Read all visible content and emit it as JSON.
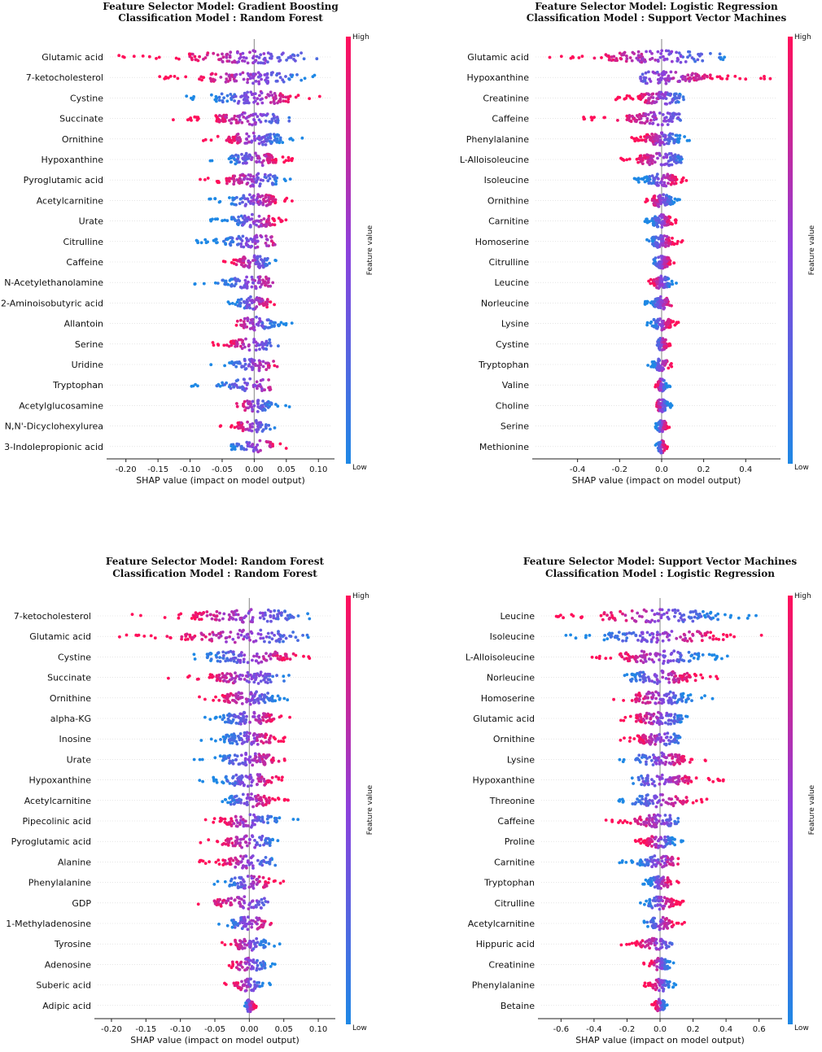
{
  "chart_data": [
    {
      "type": "scatter",
      "subtype": "shap-beeswarm",
      "title": "Feature Selector  Model: Gradient Boosting",
      "subtitle": "Classification Model : Random Forest",
      "xlabel": "SHAP value (impact on model output)",
      "colorbar": {
        "label": "Feature value",
        "high": "High",
        "low": "Low",
        "high_color": "#ff0f5a",
        "low_color": "#1e88e5"
      },
      "xlim": [
        -0.225,
        0.12
      ],
      "xticks": [
        -0.2,
        -0.15,
        -0.1,
        -0.05,
        0.0,
        0.05,
        0.1
      ],
      "xtick_labels": [
        "-0.20",
        "-0.15",
        "-0.10",
        "-0.05",
        "0.00",
        "0.05",
        "0.10"
      ],
      "features": [
        "Glutamic acid",
        "7-ketocholesterol",
        "Cystine",
        "Succinate",
        "Ornithine",
        "Hypoxanthine",
        "Pyroglutamic acid",
        "Acetylcarnitine",
        "Urate",
        "Citrulline",
        "Caffeine",
        "N-Acetylethanolamine",
        "2-Aminoisobutyric acid",
        "Allantoin",
        "Serine",
        "Uridine",
        "Tryptophan",
        "Acetylglucosamine",
        "N,N'-Dicyclohexylurea",
        "3-Indolepropionic acid"
      ],
      "ranges": [
        [
          -0.22,
          0.1
        ],
        [
          -0.15,
          0.1
        ],
        [
          -0.11,
          0.105
        ],
        [
          -0.13,
          0.055
        ],
        [
          -0.08,
          0.075
        ],
        [
          -0.07,
          0.06
        ],
        [
          -0.085,
          0.06
        ],
        [
          -0.07,
          0.06
        ],
        [
          -0.07,
          0.055
        ],
        [
          -0.1,
          0.045
        ],
        [
          -0.055,
          0.035
        ],
        [
          -0.1,
          0.03
        ],
        [
          -0.05,
          0.035
        ],
        [
          -0.03,
          0.065
        ],
        [
          -0.075,
          0.04
        ],
        [
          -0.07,
          0.04
        ],
        [
          -0.11,
          0.03
        ],
        [
          -0.03,
          0.055
        ],
        [
          -0.055,
          0.035
        ],
        [
          -0.07,
          0.05
        ]
      ],
      "high_side": [
        -1,
        -1,
        1,
        -1,
        -1,
        1,
        -1,
        1,
        1,
        1,
        -1,
        1,
        1,
        -1,
        -1,
        1,
        1,
        -1,
        -1,
        1
      ]
    },
    {
      "type": "scatter",
      "subtype": "shap-beeswarm",
      "title": "Feature Selector  Model: Logistic Regression",
      "subtitle": "Classification Model : Support Vector Machines",
      "xlabel": "SHAP value (impact on model output)",
      "colorbar": {
        "label": "Feature value",
        "high": "High",
        "low": "Low",
        "high_color": "#ff0f5a",
        "low_color": "#1e88e5"
      },
      "xlim": [
        -0.6,
        0.55
      ],
      "xticks": [
        -0.4,
        -0.2,
        0.0,
        0.2,
        0.4
      ],
      "xtick_labels": [
        "-0.4",
        "-0.2",
        "0.0",
        "0.2",
        "0.4"
      ],
      "features": [
        "Glutamic acid",
        "Hypoxanthine",
        "Creatinine",
        "Caffeine",
        "Phenylalanine",
        "L-Alloisoleucine",
        "Isoleucine",
        "Ornithine",
        "Carnitine",
        "Homoserine",
        "Citrulline",
        "Leucine",
        "Norleucine",
        "Lysine",
        "Cystine",
        "Tryptophan",
        "Valine",
        "Choline",
        "Serine",
        "Methionine"
      ],
      "ranges": [
        [
          -0.55,
          0.3
        ],
        [
          -0.1,
          0.52
        ],
        [
          -0.22,
          0.15
        ],
        [
          -0.38,
          0.1
        ],
        [
          -0.15,
          0.15
        ],
        [
          -0.22,
          0.16
        ],
        [
          -0.13,
          0.12
        ],
        [
          -0.08,
          0.09
        ],
        [
          -0.08,
          0.08
        ],
        [
          -0.08,
          0.1
        ],
        [
          -0.06,
          0.08
        ],
        [
          -0.08,
          0.07
        ],
        [
          -0.08,
          0.05
        ],
        [
          -0.07,
          0.08
        ],
        [
          -0.03,
          0.05
        ],
        [
          -0.07,
          0.05
        ],
        [
          -0.03,
          0.04
        ],
        [
          -0.04,
          0.05
        ],
        [
          -0.03,
          0.04
        ],
        [
          -0.03,
          0.03
        ]
      ],
      "high_side": [
        -1,
        1,
        -1,
        -1,
        -1,
        -1,
        1,
        -1,
        1,
        1,
        1,
        -1,
        1,
        1,
        1,
        1,
        -1,
        -1,
        1,
        1
      ]
    },
    {
      "type": "scatter",
      "subtype": "shap-beeswarm",
      "title": "Feature Selector  Model: Random Forest",
      "subtitle": "Classification Model : Random Forest",
      "xlabel": "SHAP value (impact on model output)",
      "colorbar": {
        "label": "Feature value",
        "high": "High",
        "low": "Low",
        "high_color": "#ff0f5a",
        "low_color": "#1e88e5"
      },
      "xlim": [
        -0.22,
        0.12
      ],
      "xticks": [
        -0.2,
        -0.15,
        -0.1,
        -0.05,
        0.0,
        0.05,
        0.1
      ],
      "xtick_labels": [
        "-0.20",
        "-0.15",
        "-0.10",
        "-0.05",
        "0.00",
        "0.05",
        "0.10"
      ],
      "features": [
        "7-ketocholesterol",
        "Glutamic acid",
        "Cystine",
        "Succinate",
        "Ornithine",
        "alpha-KG",
        "Inosine",
        "Urate",
        "Hypoxanthine",
        "Acetylcarnitine",
        "Pipecolinic acid",
        "Pyroglutamic acid",
        "Alanine",
        "Phenylalanine",
        "GDP",
        "1-Methyladenosine",
        "Tyrosine",
        "Adenosine",
        "Suberic acid",
        "Adipic acid"
      ],
      "ranges": [
        [
          -0.17,
          0.1
        ],
        [
          -0.19,
          0.1
        ],
        [
          -0.115,
          0.1
        ],
        [
          -0.12,
          0.06
        ],
        [
          -0.075,
          0.06
        ],
        [
          -0.075,
          0.06
        ],
        [
          -0.07,
          0.055
        ],
        [
          -0.08,
          0.065
        ],
        [
          -0.075,
          0.06
        ],
        [
          -0.05,
          0.06
        ],
        [
          -0.065,
          0.075
        ],
        [
          -0.075,
          0.05
        ],
        [
          -0.075,
          0.05
        ],
        [
          -0.055,
          0.05
        ],
        [
          -0.11,
          0.035
        ],
        [
          -0.06,
          0.035
        ],
        [
          -0.04,
          0.045
        ],
        [
          -0.05,
          0.04
        ],
        [
          -0.04,
          0.035
        ],
        [
          -0.01,
          0.01
        ]
      ],
      "high_side": [
        -1,
        -1,
        1,
        -1,
        -1,
        1,
        1,
        1,
        1,
        1,
        -1,
        -1,
        -1,
        1,
        -1,
        1,
        -1,
        -1,
        -1,
        1
      ]
    },
    {
      "type": "scatter",
      "subtype": "shap-beeswarm",
      "title": "Feature Selector  Model: Support Vector Machines",
      "subtitle": "Classification Model : Logistic Regression",
      "xlabel": "SHAP value (impact on model output)",
      "colorbar": {
        "label": "Feature value",
        "high": "High",
        "low": "Low",
        "high_color": "#ff0f5a",
        "low_color": "#1e88e5"
      },
      "xlim": [
        -0.72,
        0.72
      ],
      "xticks": [
        -0.6,
        -0.4,
        -0.2,
        0.0,
        0.2,
        0.4,
        0.6
      ],
      "xtick_labels": [
        "-0.6",
        "-0.4",
        "-0.2",
        "0.0",
        "0.2",
        "0.4",
        "0.6"
      ],
      "features": [
        "Leucine",
        "Isoleucine",
        "L-Alloisoleucine",
        "Norleucine",
        "Homoserine",
        "Glutamic acid",
        "Ornithine",
        "Lysine",
        "Hypoxanthine",
        "Threonine",
        "Caffeine",
        "Proline",
        "Carnitine",
        "Tryptophan",
        "Citrulline",
        "Acetylcarnitine",
        "Hippuric acid",
        "Creatinine",
        "Phenylalanine",
        "Betaine"
      ],
      "ranges": [
        [
          -0.65,
          0.65
        ],
        [
          -0.6,
          0.65
        ],
        [
          -0.45,
          0.42
        ],
        [
          -0.32,
          0.35
        ],
        [
          -0.32,
          0.32
        ],
        [
          -0.28,
          0.22
        ],
        [
          -0.25,
          0.2
        ],
        [
          -0.25,
          0.3
        ],
        [
          -0.2,
          0.4
        ],
        [
          -0.25,
          0.32
        ],
        [
          -0.33,
          0.12
        ],
        [
          -0.15,
          0.15
        ],
        [
          -0.25,
          0.12
        ],
        [
          -0.12,
          0.12
        ],
        [
          -0.12,
          0.15
        ],
        [
          -0.1,
          0.15
        ],
        [
          -0.25,
          0.1
        ],
        [
          -0.1,
          0.1
        ],
        [
          -0.1,
          0.1
        ],
        [
          -0.05,
          0.05
        ]
      ],
      "high_side": [
        -1,
        1,
        -1,
        1,
        -1,
        -1,
        -1,
        1,
        1,
        1,
        -1,
        -1,
        1,
        1,
        1,
        1,
        -1,
        -1,
        -1,
        -1
      ]
    }
  ]
}
